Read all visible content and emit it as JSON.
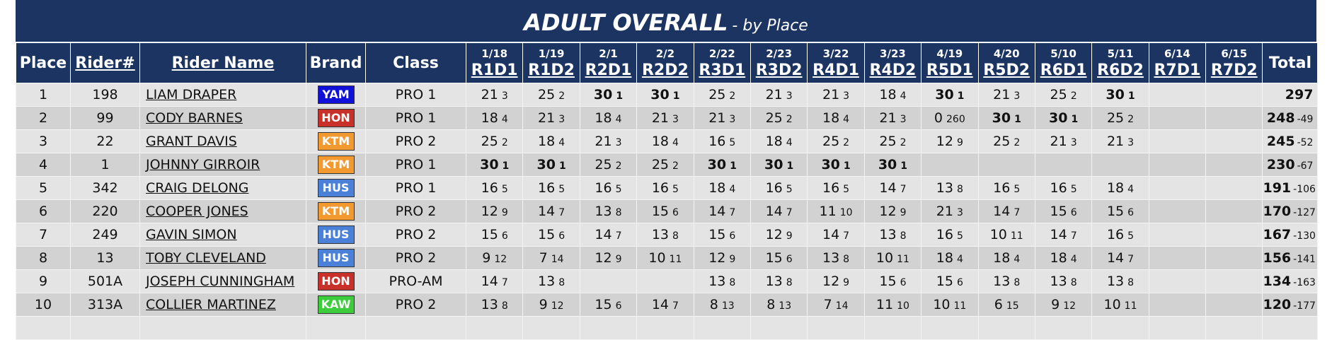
{
  "title": "ADULT OVERALL",
  "subtitle": "- by Place",
  "columns": {
    "place": "Place",
    "rider": "Rider#",
    "name": "Rider Name",
    "brand": "Brand",
    "class": "Class",
    "total": "Total"
  },
  "rounds": [
    {
      "date": "1/18",
      "name": "R1D1"
    },
    {
      "date": "1/19",
      "name": "R1D2"
    },
    {
      "date": "2/1",
      "name": "R2D1"
    },
    {
      "date": "2/2",
      "name": "R2D2"
    },
    {
      "date": "2/22",
      "name": "R3D1"
    },
    {
      "date": "2/23",
      "name": "R3D2"
    },
    {
      "date": "3/22",
      "name": "R4D1"
    },
    {
      "date": "3/23",
      "name": "R4D2"
    },
    {
      "date": "4/19",
      "name": "R5D1"
    },
    {
      "date": "4/20",
      "name": "R5D2"
    },
    {
      "date": "5/10",
      "name": "R6D1"
    },
    {
      "date": "5/11",
      "name": "R6D2"
    },
    {
      "date": "6/14",
      "name": "R7D1"
    },
    {
      "date": "6/15",
      "name": "R7D2"
    }
  ],
  "brand_colors": {
    "YAM": "#1010d8",
    "HON": "#c8302a",
    "KTM": "#f29a30",
    "HUS": "#4a80d8",
    "KAW": "#3ccc3c"
  },
  "rows": [
    {
      "place": 1,
      "number": 198,
      "name": "LIAM DRAPER",
      "brand": "YAM",
      "class": "PRO 1",
      "rounds": [
        [
          21,
          3
        ],
        [
          25,
          2
        ],
        [
          30,
          1
        ],
        [
          30,
          1
        ],
        [
          25,
          2
        ],
        [
          21,
          3
        ],
        [
          21,
          3
        ],
        [
          18,
          4
        ],
        [
          30,
          1
        ],
        [
          21,
          3
        ],
        [
          25,
          2
        ],
        [
          30,
          1
        ],
        null,
        null
      ],
      "total": 297
    },
    {
      "place": 2,
      "number": 99,
      "name": "CODY BARNES",
      "brand": "HON",
      "class": "PRO 1",
      "rounds": [
        [
          18,
          4
        ],
        [
          21,
          3
        ],
        [
          18,
          4
        ],
        [
          21,
          3
        ],
        [
          21,
          3
        ],
        [
          25,
          2
        ],
        [
          18,
          4
        ],
        [
          21,
          3
        ],
        [
          0,
          260
        ],
        [
          30,
          1
        ],
        [
          30,
          1
        ],
        [
          25,
          2
        ],
        null,
        null
      ],
      "total": 248,
      "gap": -49
    },
    {
      "place": 3,
      "number": 22,
      "name": "GRANT DAVIS",
      "brand": "KTM",
      "class": "PRO 2",
      "rounds": [
        [
          25,
          2
        ],
        [
          18,
          4
        ],
        [
          21,
          3
        ],
        [
          18,
          4
        ],
        [
          16,
          5
        ],
        [
          18,
          4
        ],
        [
          25,
          2
        ],
        [
          25,
          2
        ],
        [
          12,
          9
        ],
        [
          25,
          2
        ],
        [
          21,
          3
        ],
        [
          21,
          3
        ],
        null,
        null
      ],
      "total": 245,
      "gap": -52
    },
    {
      "place": 4,
      "number": 1,
      "name": "JOHNNY GIRROIR",
      "brand": "KTM",
      "class": "PRO 1",
      "rounds": [
        [
          30,
          1
        ],
        [
          30,
          1
        ],
        [
          25,
          2
        ],
        [
          25,
          2
        ],
        [
          30,
          1
        ],
        [
          30,
          1
        ],
        [
          30,
          1
        ],
        [
          30,
          1
        ],
        null,
        null,
        null,
        null,
        null,
        null
      ],
      "total": 230,
      "gap": -67
    },
    {
      "place": 5,
      "number": 342,
      "name": "CRAIG DELONG",
      "brand": "HUS",
      "class": "PRO 1",
      "rounds": [
        [
          16,
          5
        ],
        [
          16,
          5
        ],
        [
          16,
          5
        ],
        [
          16,
          5
        ],
        [
          18,
          4
        ],
        [
          16,
          5
        ],
        [
          16,
          5
        ],
        [
          14,
          7
        ],
        [
          13,
          8
        ],
        [
          16,
          5
        ],
        [
          16,
          5
        ],
        [
          18,
          4
        ],
        null,
        null
      ],
      "total": 191,
      "gap": -106
    },
    {
      "place": 6,
      "number": 220,
      "name": "COOPER JONES",
      "brand": "KTM",
      "class": "PRO 2",
      "rounds": [
        [
          12,
          9
        ],
        [
          14,
          7
        ],
        [
          13,
          8
        ],
        [
          15,
          6
        ],
        [
          14,
          7
        ],
        [
          14,
          7
        ],
        [
          11,
          10
        ],
        [
          12,
          9
        ],
        [
          21,
          3
        ],
        [
          14,
          7
        ],
        [
          15,
          6
        ],
        [
          15,
          6
        ],
        null,
        null
      ],
      "total": 170,
      "gap": -127
    },
    {
      "place": 7,
      "number": 249,
      "name": "GAVIN SIMON",
      "brand": "HUS",
      "class": "PRO 2",
      "rounds": [
        [
          15,
          6
        ],
        [
          15,
          6
        ],
        [
          14,
          7
        ],
        [
          13,
          8
        ],
        [
          15,
          6
        ],
        [
          12,
          9
        ],
        [
          14,
          7
        ],
        [
          13,
          8
        ],
        [
          16,
          5
        ],
        [
          10,
          11
        ],
        [
          14,
          7
        ],
        [
          16,
          5
        ],
        null,
        null
      ],
      "total": 167,
      "gap": -130
    },
    {
      "place": 8,
      "number": 13,
      "name": "TOBY CLEVELAND",
      "brand": "HUS",
      "class": "PRO 2",
      "rounds": [
        [
          9,
          12
        ],
        [
          7,
          14
        ],
        [
          12,
          9
        ],
        [
          10,
          11
        ],
        [
          12,
          9
        ],
        [
          15,
          6
        ],
        [
          13,
          8
        ],
        [
          10,
          11
        ],
        [
          18,
          4
        ],
        [
          18,
          4
        ],
        [
          18,
          4
        ],
        [
          14,
          7
        ],
        null,
        null
      ],
      "total": 156,
      "gap": -141
    },
    {
      "place": 9,
      "number": "501A",
      "name": "JOSEPH CUNNINGHAM",
      "brand": "HON",
      "class": "PRO-AM",
      "rounds": [
        [
          14,
          7
        ],
        [
          13,
          8
        ],
        null,
        null,
        [
          13,
          8
        ],
        [
          13,
          8
        ],
        [
          12,
          9
        ],
        [
          15,
          6
        ],
        [
          15,
          6
        ],
        [
          13,
          8
        ],
        [
          13,
          8
        ],
        [
          13,
          8
        ],
        null,
        null
      ],
      "total": 134,
      "gap": -163
    },
    {
      "place": 10,
      "number": "313A",
      "name": "COLLIER MARTINEZ",
      "brand": "KAW",
      "class": "PRO 2",
      "rounds": [
        [
          13,
          8
        ],
        [
          9,
          12
        ],
        [
          15,
          6
        ],
        [
          14,
          7
        ],
        [
          8,
          13
        ],
        [
          8,
          13
        ],
        [
          7,
          14
        ],
        [
          11,
          10
        ],
        [
          10,
          11
        ],
        [
          6,
          15
        ],
        [
          9,
          12
        ],
        [
          10,
          11
        ],
        null,
        null
      ],
      "total": 120,
      "gap": -177
    }
  ]
}
